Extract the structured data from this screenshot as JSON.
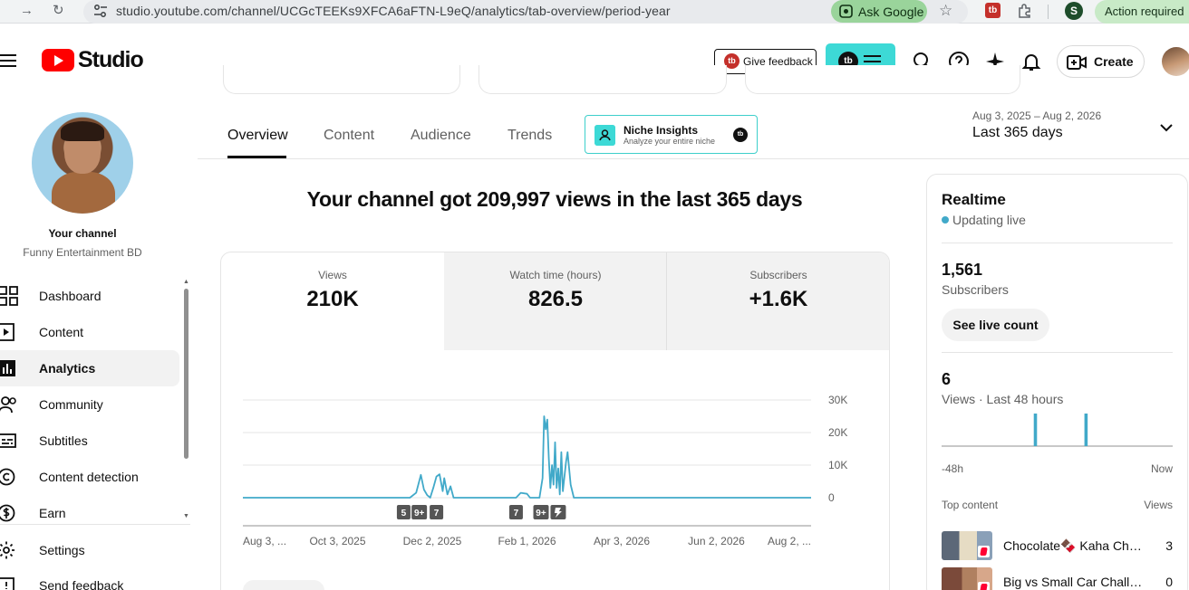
{
  "browser": {
    "url": "studio.youtube.com/channel/UCGcTEEKs9XFCA6aFTN-L9eQ/analytics/tab-overview/period-year",
    "ask_google": "Ask Google",
    "profile_initial": "S",
    "action_required": "Action required",
    "ext_label": "tb"
  },
  "header": {
    "logo_text": "Studio",
    "feedback_label": "Give feedback",
    "tb_badge": "tb",
    "create_label": "Create"
  },
  "sidebar": {
    "your_channel": "Your channel",
    "channel_name": "Funny Entertainment BD",
    "items": [
      {
        "label": "Dashboard",
        "icon": "dashboard-icon"
      },
      {
        "label": "Content",
        "icon": "content-icon"
      },
      {
        "label": "Analytics",
        "icon": "analytics-icon",
        "active": true
      },
      {
        "label": "Community",
        "icon": "community-icon"
      },
      {
        "label": "Subtitles",
        "icon": "subtitles-icon"
      },
      {
        "label": "Content detection",
        "icon": "copyright-icon"
      },
      {
        "label": "Earn",
        "icon": "dollar-icon"
      }
    ],
    "settings": "Settings",
    "send_feedback": "Send feedback"
  },
  "tabs": [
    {
      "label": "Overview",
      "active": true
    },
    {
      "label": "Content"
    },
    {
      "label": "Audience"
    },
    {
      "label": "Trends"
    }
  ],
  "niche": {
    "title": "Niche Insights",
    "subtitle": "Analyze your entire niche",
    "badge": "tb"
  },
  "period": {
    "range": "Aug 3, 2025 – Aug 2, 2026",
    "label": "Last 365 days"
  },
  "headline": "Your channel got 209,997 views in the last 365 days",
  "metrics": [
    {
      "label": "Views",
      "value": "210K",
      "active": true
    },
    {
      "label": "Watch time (hours)",
      "value": "826.5"
    },
    {
      "label": "Subscribers",
      "value": "+1.6K"
    }
  ],
  "chart_data": {
    "type": "line",
    "title": "",
    "xlabel": "",
    "ylabel": "",
    "ylim": [
      0,
      30000
    ],
    "yticks": [
      "30K",
      "20K",
      "10K",
      "0"
    ],
    "xticks": [
      "Aug 3, ...",
      "Oct 3, 2025",
      "Dec 2, 2025",
      "Feb 1, 2026",
      "Apr 3, 2026",
      "Jun 2, 2026",
      "Aug 2, ..."
    ],
    "x_start": "2025-08-03",
    "x_end": "2026-08-02",
    "series_color": "#41a9c9",
    "points": [
      [
        "2025-08-03",
        0
      ],
      [
        "2025-11-18",
        0
      ],
      [
        "2025-11-22",
        1500
      ],
      [
        "2025-11-25",
        7000
      ],
      [
        "2025-11-27",
        2500
      ],
      [
        "2025-11-29",
        800
      ],
      [
        "2025-12-01",
        0
      ],
      [
        "2025-12-03",
        3000
      ],
      [
        "2025-12-05",
        6500
      ],
      [
        "2025-12-07",
        7200
      ],
      [
        "2025-12-09",
        2000
      ],
      [
        "2025-12-10",
        6000
      ],
      [
        "2025-12-12",
        1000
      ],
      [
        "2025-12-14",
        3500
      ],
      [
        "2025-12-16",
        0
      ],
      [
        "2026-01-25",
        0
      ],
      [
        "2026-01-28",
        1500
      ],
      [
        "2026-02-01",
        1200
      ],
      [
        "2026-02-03",
        0
      ],
      [
        "2026-02-09",
        0
      ],
      [
        "2026-02-11",
        6000
      ],
      [
        "2026-02-12",
        25000
      ],
      [
        "2026-02-13",
        21000
      ],
      [
        "2026-02-14",
        24000
      ],
      [
        "2026-02-15",
        12000
      ],
      [
        "2026-02-16",
        3000
      ],
      [
        "2026-02-17",
        10000
      ],
      [
        "2026-02-18",
        4000
      ],
      [
        "2026-02-19",
        17000
      ],
      [
        "2026-02-20",
        3000
      ],
      [
        "2026-02-21",
        9000
      ],
      [
        "2026-02-22",
        1000
      ],
      [
        "2026-02-23",
        14000
      ],
      [
        "2026-02-24",
        2000
      ],
      [
        "2026-02-26",
        11000
      ],
      [
        "2026-02-27",
        14000
      ],
      [
        "2026-03-01",
        4000
      ],
      [
        "2026-03-03",
        0
      ],
      [
        "2026-08-02",
        0
      ]
    ],
    "markers": [
      {
        "label": "5",
        "date": "2025-11-14"
      },
      {
        "label": "9+",
        "date": "2025-11-24"
      },
      {
        "label": "7",
        "date": "2025-12-05"
      },
      {
        "label": "7",
        "date": "2026-01-25"
      },
      {
        "label": "9+",
        "date": "2026-02-10"
      },
      {
        "label": "shorts",
        "date": "2026-02-21"
      }
    ]
  },
  "realtime": {
    "title": "Realtime",
    "status": "Updating live",
    "subscribers_value": "1,561",
    "subscribers_label": "Subscribers",
    "live_count_button": "See live count",
    "views_value": "6",
    "views_label": "Views · Last 48 hours",
    "axis_start": "-48h",
    "axis_end": "Now",
    "bars": [
      0,
      0,
      0,
      0,
      0,
      0,
      0,
      0,
      0,
      0,
      0,
      0,
      0,
      0,
      0,
      0,
      0,
      0,
      0,
      0,
      0,
      0,
      0,
      0,
      0,
      0,
      0,
      0,
      0,
      0,
      0,
      0,
      0,
      0,
      0,
      0,
      0,
      0,
      0,
      0,
      0,
      0,
      0,
      0,
      0,
      0,
      0,
      0,
      0,
      0,
      0,
      0,
      0,
      0,
      0,
      0,
      0,
      0,
      0,
      0,
      0,
      0,
      0,
      0,
      0,
      0,
      0,
      0,
      0,
      0,
      0,
      3,
      0,
      0,
      0,
      0,
      0,
      0,
      0,
      0,
      0,
      0,
      0,
      0,
      0,
      0,
      0,
      0,
      0,
      0,
      0,
      0,
      0,
      0,
      0,
      0,
      0,
      0,
      0,
      0,
      0,
      0,
      0,
      0,
      0,
      0,
      0,
      0,
      0,
      0,
      3,
      0,
      0,
      0,
      0,
      0,
      0,
      0,
      0,
      0,
      0,
      0,
      0,
      0,
      0,
      0,
      0,
      0,
      0,
      0,
      0,
      0,
      0,
      0,
      0,
      0,
      0,
      0,
      0,
      0,
      0,
      0,
      0,
      0,
      0,
      0,
      0,
      0,
      0,
      0,
      0,
      0,
      0,
      0,
      0,
      0,
      0,
      0,
      0,
      0,
      0,
      0,
      0,
      0,
      0,
      0,
      0,
      0,
      0,
      0,
      0,
      0,
      0,
      0,
      0,
      0,
      0,
      0
    ],
    "top_content_label": "Top content",
    "views_col": "Views",
    "top_content": [
      {
        "title": "Chocolate🍫 Kaha Chu...",
        "views": "3"
      },
      {
        "title": "Big vs Small Car Challe...",
        "views": "0"
      }
    ]
  }
}
